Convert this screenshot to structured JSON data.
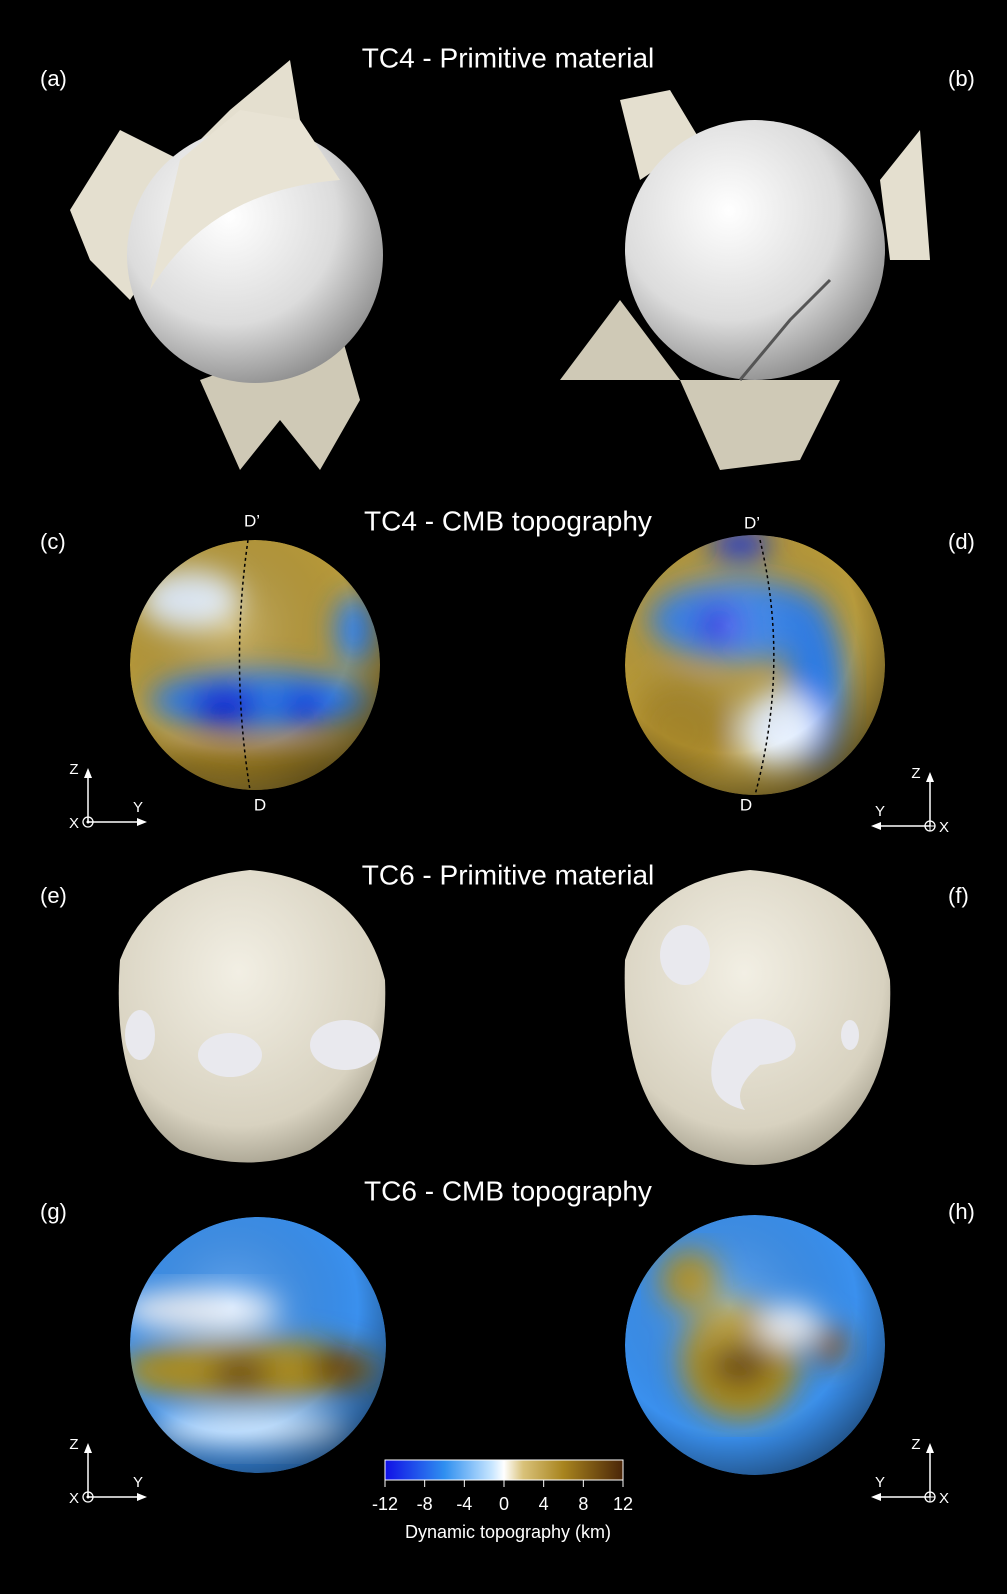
{
  "titles": [
    "TC4 - Primitive material",
    "TC4 - CMB topography",
    "TC6 - Primitive material",
    "TC6 - CMB topography"
  ],
  "panel_labels": [
    "(a)",
    "(b)",
    "(c)",
    "(d)",
    "(e)",
    "(f)",
    "(g)",
    "(h)"
  ],
  "section_markers": {
    "top": "D’",
    "bottom": "D"
  },
  "axes": {
    "x": "X",
    "y": "Y",
    "z": "Z"
  },
  "colorbar": {
    "ticks": [
      -12,
      -8,
      -4,
      0,
      4,
      8,
      12
    ],
    "label": "Dynamic topography (km)"
  }
}
